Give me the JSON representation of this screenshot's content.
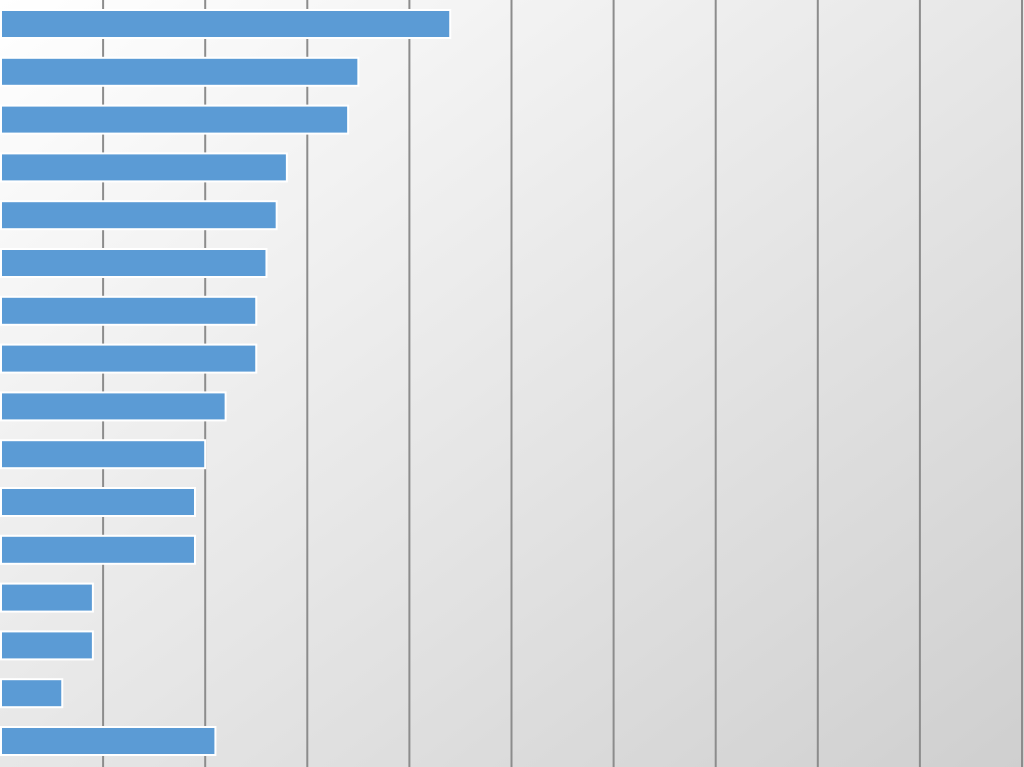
{
  "chart_data": {
    "type": "bar",
    "orientation": "horizontal",
    "title": "",
    "xlabel": "",
    "ylabel": "",
    "xlim": [
      0,
      10
    ],
    "grid": "vertical",
    "legend": "none",
    "values": [
      4.4,
      3.5,
      3.4,
      2.8,
      2.7,
      2.6,
      2.5,
      2.5,
      2.2,
      2.0,
      1.9,
      1.9,
      0.9,
      0.9,
      0.6,
      2.1
    ]
  },
  "colors": {
    "bar_fill": "#5b9bd5",
    "bar_stroke": "#ffffff",
    "gridline": "#8c8c8c",
    "background_light": "#ffffff",
    "background_dark": "#cfcfcf"
  }
}
